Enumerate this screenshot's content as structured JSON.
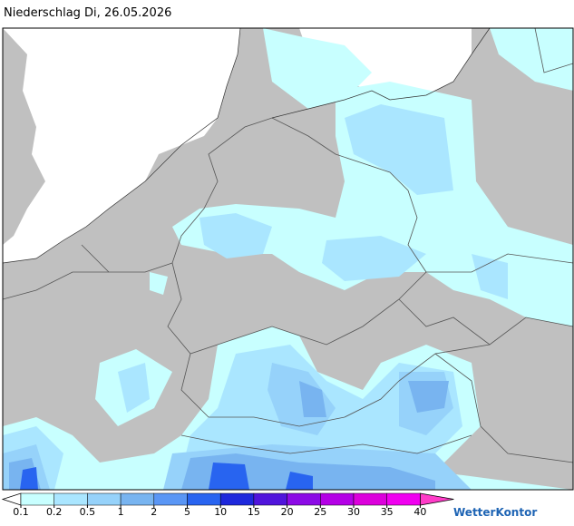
{
  "header": {
    "title": "Niederschlag Di, 26.05.2026"
  },
  "legend": {
    "ticks": [
      0.1,
      0.2,
      0.5,
      1,
      2,
      5,
      10,
      15,
      20,
      25,
      30,
      35,
      40
    ],
    "colors": [
      "#ffffff",
      "#c8ffff",
      "#aae6ff",
      "#96d2fa",
      "#78b4f0",
      "#5a96f5",
      "#2864f0",
      "#1e28dc",
      "#5014dc",
      "#8c0ae6",
      "#b400e6",
      "#dc00dc",
      "#f000f0",
      "#ff3cc8"
    ]
  },
  "logo": {
    "text": "WetterKontor"
  }
}
